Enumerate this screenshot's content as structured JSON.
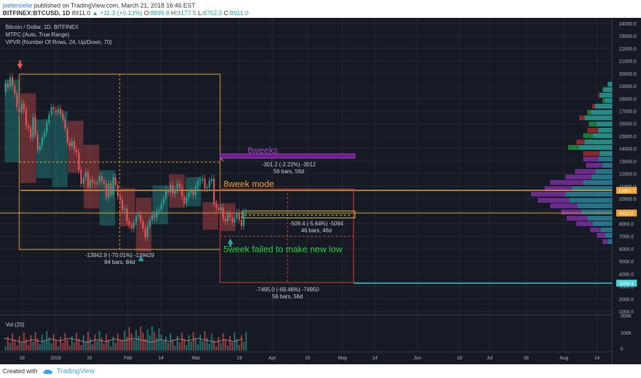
{
  "header": {
    "user": "pietersielie",
    "published": " published on TradingView.com, March 21, 2018 16:46 EST",
    "symbol": "BITFINEX:BTCUSD, 1D",
    "last": "8911.0",
    "change": "+11.3 (+0.13%)",
    "o_label": "O:",
    "o_val": "8899.8",
    "h_label": "H:",
    "h_val": "9177.5",
    "l_label": "L:",
    "l_val": "8752.0",
    "c_label": "C:",
    "c_val": "8911.0"
  },
  "legend": {
    "title": "Bitcoin / Dollar, 1D, BITFINEX",
    "ind1": "MTPC (Auto, True Range)",
    "ind2": "VPVR (Number Of Rows, 24, Up/Down, 70)",
    "vol": "Vol (20)"
  },
  "annotations": {
    "a1_line1": "-301.2 (-2.22%) -3012",
    "a1_line2": "56 bars, 56d",
    "weeks8": "8weeks",
    "mode": "8week mode",
    "a2_line1": "-509.4 (-5.64%) -5094",
    "a2_line2": "46 bars, 46d",
    "failed": "5week failed to make new low",
    "a3_line1": "-13942.9 (-70.01%) -139429",
    "a3_line2": "84 bars, 84d",
    "a4_line1": "-7495.0 (-69.46%) -74950",
    "a4_line2": "56 bars, 56d"
  },
  "price_axis": [
    "24000.0",
    "23000.0",
    "22000.0",
    "21000.0",
    "20000.0",
    "19000.0",
    "18000.0",
    "17000.0",
    "16000.0",
    "15000.0",
    "14000.0",
    "13000.0",
    "12000.0",
    "11000.0",
    "10000.0",
    "9000.0",
    "8000.0",
    "7000.0",
    "6000.0",
    "5000.0",
    "4000.0",
    "3000.0",
    "2000.0",
    "1000.0"
  ],
  "price_tags": {
    "mode": "10661.7",
    "last": "8911.0",
    "low": "3289.9"
  },
  "vol_axis": [
    "200K",
    "100K",
    "0"
  ],
  "time_axis": [
    {
      "label": "18",
      "x": 32
    },
    {
      "label": "2018",
      "x": 81
    },
    {
      "label": "15",
      "x": 130
    },
    {
      "label": "Feb",
      "x": 186
    },
    {
      "label": "14",
      "x": 234
    },
    {
      "label": "Mar",
      "x": 285
    },
    {
      "label": "19",
      "x": 348
    },
    {
      "label": "Apr",
      "x": 396
    },
    {
      "label": "16",
      "x": 447
    },
    {
      "label": "May",
      "x": 498
    },
    {
      "label": "14",
      "x": 545
    },
    {
      "label": "Jun",
      "x": 607
    },
    {
      "label": "18",
      "x": 668
    },
    {
      "label": "Jul",
      "x": 712
    },
    {
      "label": "16",
      "x": 765
    },
    {
      "label": "Aug",
      "x": 820
    },
    {
      "label": "14",
      "x": 868
    }
  ],
  "colors": {
    "up": "#26a69a",
    "down": "#ef5350",
    "orange": "#f0a030",
    "purple": "#b040d0",
    "cyan": "#3fd0d8",
    "yellow": "#e6d84a"
  },
  "footer": {
    "created": "Created with",
    "brand": "TradingView"
  }
}
